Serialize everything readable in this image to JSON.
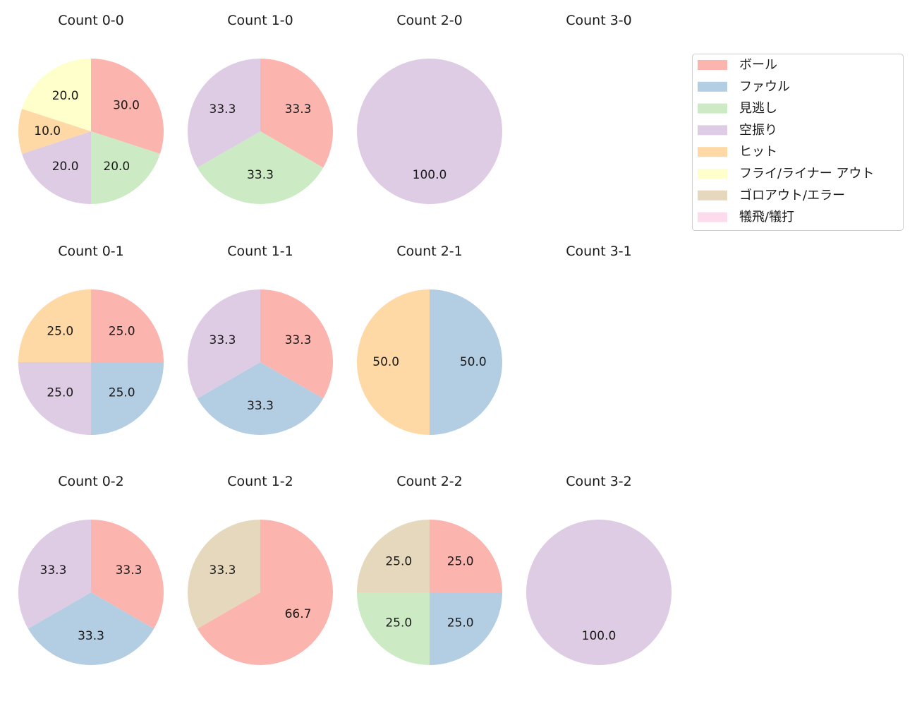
{
  "chart_data": {
    "type": "pie",
    "legend_position": "right",
    "categories": [
      "ボール",
      "ファウル",
      "見逃し",
      "空振り",
      "ヒット",
      "フライ/ライナー アウト",
      "ゴロアウト/エラー",
      "犠飛/犠打"
    ],
    "colors": [
      "#fbb4ae",
      "#b3cde3",
      "#ccebc5",
      "#decbe4",
      "#fed9a6",
      "#ffffcc",
      "#e5d8bd",
      "#fddaec"
    ],
    "pies": [
      {
        "title": "Count 0-0",
        "values": [
          30,
          0,
          20,
          20,
          10,
          20,
          0,
          0
        ],
        "labels": [
          "30.0",
          "",
          "20.0",
          "20.0",
          "10.0",
          "20.0",
          "",
          ""
        ]
      },
      {
        "title": "Count 1-0",
        "values": [
          1,
          0,
          1,
          1,
          0,
          0,
          0,
          0
        ],
        "labels": [
          "33.3",
          "",
          "33.3",
          "33.3",
          "",
          "",
          "",
          ""
        ]
      },
      {
        "title": "Count 2-0",
        "values": [
          0,
          0,
          0,
          1,
          0,
          0,
          0,
          0
        ],
        "labels": [
          "",
          "",
          "",
          "100.0",
          "",
          "",
          "",
          ""
        ]
      },
      {
        "title": "Count 3-0",
        "values": [
          0,
          0,
          0,
          0,
          0,
          0,
          0,
          0
        ],
        "labels": [
          "",
          "",
          "",
          "",
          "",
          "",
          "",
          ""
        ]
      },
      {
        "title": "Count 0-1",
        "values": [
          1,
          1,
          0,
          1,
          1,
          0,
          0,
          0
        ],
        "labels": [
          "25.0",
          "25.0",
          "",
          "25.0",
          "25.0",
          "",
          "",
          ""
        ]
      },
      {
        "title": "Count 1-1",
        "values": [
          1,
          1,
          0,
          1,
          0,
          0,
          0,
          0
        ],
        "labels": [
          "33.3",
          "33.3",
          "",
          "33.3",
          "",
          "",
          "",
          ""
        ]
      },
      {
        "title": "Count 2-1",
        "values": [
          0,
          1,
          0,
          0,
          1,
          0,
          0,
          0
        ],
        "labels": [
          "",
          "50.0",
          "",
          "",
          "50.0",
          "",
          "",
          ""
        ]
      },
      {
        "title": "Count 3-1",
        "values": [
          0,
          0,
          0,
          0,
          0,
          0,
          0,
          0
        ],
        "labels": [
          "",
          "",
          "",
          "",
          "",
          "",
          "",
          ""
        ]
      },
      {
        "title": "Count 0-2",
        "values": [
          1,
          1,
          0,
          1,
          0,
          0,
          0,
          0
        ],
        "labels": [
          "33.3",
          "33.3",
          "",
          "33.3",
          "",
          "",
          "",
          ""
        ]
      },
      {
        "title": "Count 1-2",
        "values": [
          2,
          0,
          0,
          0,
          0,
          0,
          1,
          0
        ],
        "labels": [
          "66.7",
          "",
          "",
          "",
          "",
          "",
          "33.3",
          ""
        ]
      },
      {
        "title": "Count 2-2",
        "values": [
          1,
          1,
          1,
          0,
          0,
          0,
          1,
          0
        ],
        "labels": [
          "25.0",
          "25.0",
          "25.0",
          "",
          "",
          "",
          "25.0",
          ""
        ]
      },
      {
        "title": "Count 3-2",
        "values": [
          0,
          0,
          0,
          1,
          0,
          0,
          0,
          0
        ],
        "labels": [
          "",
          "",
          "",
          "100.0",
          "",
          "",
          "",
          ""
        ]
      }
    ]
  }
}
